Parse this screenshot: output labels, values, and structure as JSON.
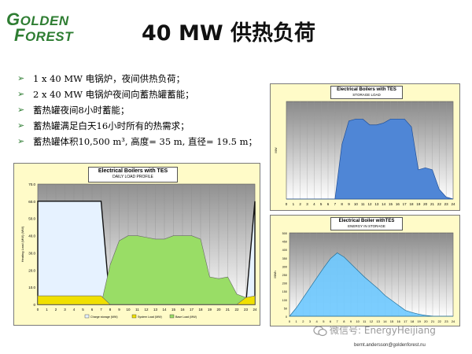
{
  "logo": {
    "line1_initial": "G",
    "line1_rest": "OLDEN",
    "line2_initial": "F",
    "line2_rest": "OREST"
  },
  "title": "40 MW 供热负荷",
  "bullets": [
    "1 x 40 MW 电锅炉，夜间供热负荷；",
    "2 x 40 MW 电锅炉夜间向蓄热罐蓄能；",
    "蓄热罐夜间8小时蓄能；",
    "蓄热罐满足白天16小时所有的热需求；",
    "蓄热罐体积10,500 m³, 高度= 35 m, 直径= 19.5 m；"
  ],
  "charts": {
    "daily": {
      "title": "Electrical Boilers with TES",
      "subtitle": "DAILY LOAD PROFILE"
    },
    "storage": {
      "title": "Electrical Boilers with TES",
      "subtitle": "STORAGE LOAD"
    },
    "energy": {
      "title": "Electrical Boiler withTES",
      "subtitle": "ENERGY IN STORAGE"
    }
  },
  "chart_data": [
    {
      "type": "area",
      "title": "Electrical Boilers with TES",
      "subtitle": "DAILY LOAD PROFILE",
      "ylabel": "Heating Load (MW) (MW)",
      "x": [
        0,
        1,
        2,
        3,
        4,
        5,
        6,
        7,
        8,
        9,
        10,
        11,
        12,
        13,
        14,
        15,
        16,
        17,
        18,
        19,
        20,
        21,
        22,
        23,
        24
      ],
      "ylim": [
        0,
        70
      ],
      "yticks": [
        "0",
        "10.0",
        "20.0",
        "30.0",
        "40.0",
        "50.0",
        "60.0",
        "70.0"
      ],
      "series": [
        {
          "name": "Charge storage (MW)",
          "color": "#e6f2ff",
          "values": [
            60,
            60,
            60,
            60,
            60,
            60,
            60,
            60,
            0,
            0,
            0,
            0,
            0,
            0,
            0,
            0,
            0,
            0,
            0,
            0,
            0,
            0,
            0,
            0,
            60
          ]
        },
        {
          "name": "System Load (MW)",
          "color": "#f0e000",
          "values": [
            5,
            5,
            5,
            5,
            5,
            5,
            5,
            5,
            0,
            0,
            0,
            0,
            0,
            0,
            0,
            0,
            0,
            0,
            0,
            0,
            0,
            0,
            0,
            4,
            5
          ]
        },
        {
          "name": "Base Load (MW)",
          "color": "#99dd66",
          "values": [
            0,
            0,
            0,
            0,
            0,
            0,
            0,
            0,
            23,
            37,
            40,
            40,
            39,
            38,
            38,
            40,
            40,
            40,
            38,
            16,
            15,
            16,
            6,
            4,
            0
          ]
        }
      ],
      "legend_position": "bottom"
    },
    {
      "type": "area",
      "title": "Electrical Boilers with TES",
      "subtitle": "STORAGE LOAD",
      "ylabel": "MW",
      "x": [
        0,
        1,
        2,
        3,
        4,
        5,
        6,
        7,
        8,
        9,
        10,
        11,
        12,
        13,
        14,
        15,
        16,
        17,
        18,
        19,
        20,
        21,
        22,
        23,
        24
      ],
      "ylim": [
        0,
        50
      ],
      "xticks": [
        "0",
        "1",
        "2",
        "3",
        "4",
        "5",
        "6",
        "7",
        "8",
        "9",
        "10",
        "11",
        "12",
        "13",
        "14",
        "15",
        "16",
        "17",
        "18",
        "19",
        "20",
        "21",
        "22",
        "23",
        "24"
      ],
      "series": [
        {
          "name": "Storage load",
          "color": "#4f86d6",
          "values": [
            0,
            0,
            0,
            0,
            0,
            0,
            0,
            0,
            28,
            40,
            41,
            41,
            38,
            38,
            39,
            41,
            41,
            41,
            37,
            15,
            16,
            15,
            5,
            1,
            0
          ]
        }
      ]
    },
    {
      "type": "area",
      "title": "Electrical Boiler withTES",
      "subtitle": "ENERGY IN STORAGE",
      "ylabel": "MWh",
      "ylim": [
        0,
        500
      ],
      "yticks": [
        "0",
        "50",
        "100",
        "150",
        "200",
        "250",
        "300",
        "350",
        "400",
        "450",
        "500"
      ],
      "x": [
        0,
        1,
        2,
        3,
        4,
        5,
        6,
        7,
        8,
        9,
        10,
        11,
        12,
        13,
        14,
        15,
        16,
        17,
        18,
        19,
        20,
        21,
        22,
        23,
        24
      ],
      "xticks": [
        "0",
        "1",
        "2",
        "3",
        "4",
        "5",
        "6",
        "7",
        "8",
        "9",
        "10",
        "11",
        "12",
        "13",
        "14",
        "15",
        "16",
        "17",
        "18",
        "19",
        "20",
        "21",
        "22",
        "23",
        "24"
      ],
      "series": [
        {
          "name": "Energy in storage",
          "color": "#6ec9ff",
          "values": [
            0,
            50,
            110,
            170,
            230,
            290,
            345,
            380,
            355,
            315,
            275,
            235,
            200,
            165,
            125,
            95,
            65,
            35,
            22,
            12,
            5,
            1,
            0,
            0,
            0
          ]
        }
      ]
    }
  ],
  "footer": {
    "email": "bernt.andersson@goldenforest.nu"
  },
  "watermark": {
    "text": "微信号: EnergyHeijiang"
  },
  "colors": {
    "logo_green": "#2e7d32",
    "bullet_arrow": "#2e7d32",
    "chart_bg": "#fffbc8"
  }
}
